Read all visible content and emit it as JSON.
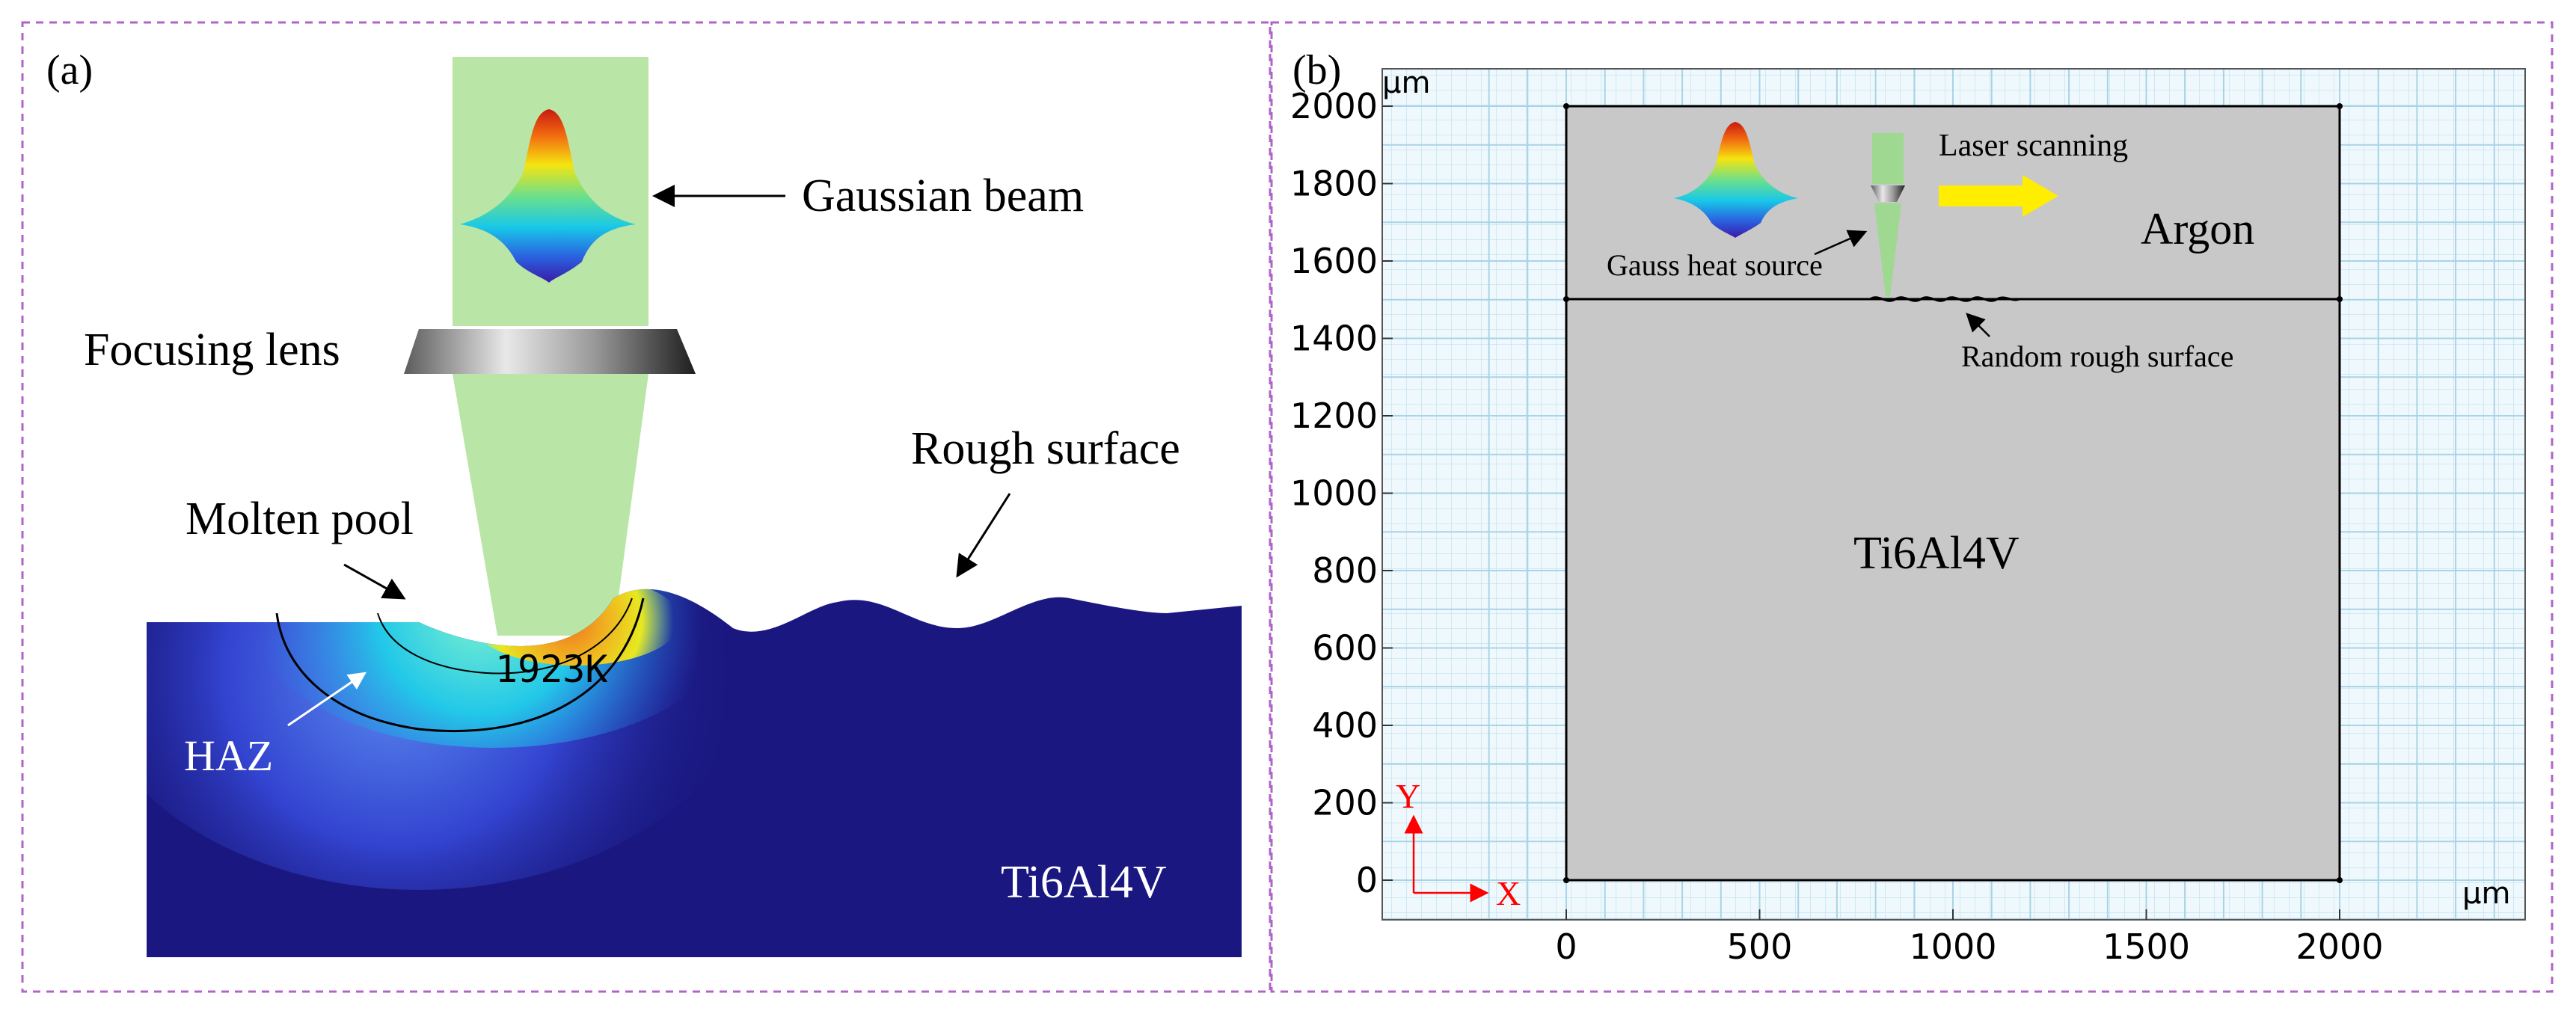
{
  "panel_a": {
    "label": "(a)",
    "gaussian_beam": "Gaussian beam",
    "focusing_lens": "Focusing lens",
    "rough_surface": "Rough surface",
    "molten_pool": "Molten pool",
    "isotherm_label": "1923K",
    "haz": "HAZ",
    "material": "Ti6Al4V"
  },
  "panel_b": {
    "label": "(b)",
    "unit_y": "μm",
    "unit_x": "μm",
    "y_ticks": [
      "2000",
      "1800",
      "1600",
      "1400",
      "1200",
      "1000",
      "800",
      "600",
      "400",
      "200",
      "0"
    ],
    "x_ticks": [
      "0",
      "500",
      "1000",
      "1500",
      "2000"
    ],
    "laser_scanning": "Laser scanning",
    "argon": "Argon",
    "gauss_heat_source": "Gauss heat source",
    "random_rough_surface": "Random rough surface",
    "material": "Ti6Al4V",
    "axis_y": "Y",
    "axis_x": "X"
  },
  "colors": {
    "frame_dashed": "#b064c8",
    "beam_green": "#b9e6a6",
    "substrate_navy": "#1a1880",
    "domain_gray": "#c8c8c8",
    "grid_blue": "#c5e3f0",
    "arrow_yellow": "#ffee00",
    "axis_red": "#ff0000"
  },
  "icons": [
    "gaussian-heat-profile-icon",
    "focusing-lens-icon"
  ]
}
